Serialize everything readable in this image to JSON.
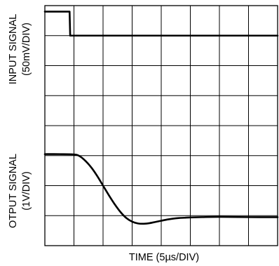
{
  "chart_data": {
    "type": "line",
    "title": "",
    "xlabel": "TIME (5µs/DIV)",
    "grid": true,
    "grid_divisions": {
      "x": 8,
      "y": 8
    },
    "xlim": [
      0,
      8
    ],
    "ylim": [
      0,
      8
    ],
    "axes": {
      "input": {
        "label_line1": "INPUT SIGNAL",
        "label_line2": "(50mV/DIV)"
      },
      "output": {
        "label_line1": "OTPUT SIGNAL",
        "label_line2": "(1V/DIV)"
      }
    },
    "series": [
      {
        "x": [
          0,
          0.85,
          0.87,
          8
        ],
        "y": [
          7.8,
          7.8,
          7.0,
          7.0
        ]
      },
      {
        "x": [
          0,
          0.5,
          1.0,
          1.2,
          1.4,
          1.6,
          1.8,
          2.0,
          2.2,
          2.4,
          2.6,
          2.8,
          3.0,
          3.2,
          3.4,
          3.6,
          3.8,
          4.0,
          4.2,
          4.4,
          4.6,
          4.8,
          5.0,
          5.4,
          6.0,
          7.0,
          8.0
        ],
        "y": [
          3.05,
          3.05,
          3.04,
          2.98,
          2.82,
          2.6,
          2.32,
          2.0,
          1.68,
          1.38,
          1.12,
          0.92,
          0.8,
          0.74,
          0.73,
          0.75,
          0.79,
          0.83,
          0.87,
          0.9,
          0.92,
          0.93,
          0.94,
          0.95,
          0.96,
          0.95,
          0.95
        ]
      }
    ]
  }
}
